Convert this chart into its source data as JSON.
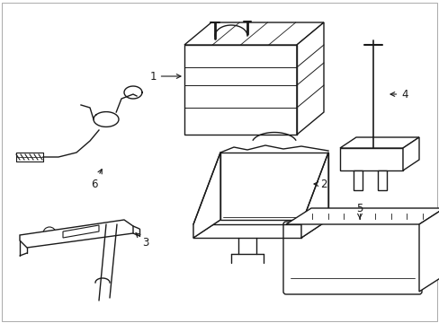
{
  "background_color": "#ffffff",
  "line_color": "#1a1a1a",
  "line_width": 1.0,
  "label_fontsize": 8.5,
  "fig_w": 4.89,
  "fig_h": 3.6,
  "dpi": 100
}
